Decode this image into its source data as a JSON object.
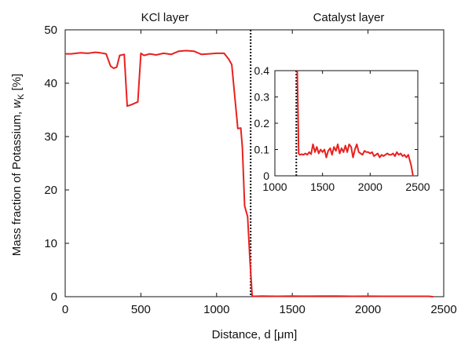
{
  "chart_data": {
    "type": "line",
    "xlabel": "Distance, d [μm]",
    "ylabel": "Mass fraction of Potassium, w_K [%]",
    "xlim": [
      0,
      2500
    ],
    "ylim": [
      0,
      50
    ],
    "xticks": [
      0,
      500,
      1000,
      1500,
      2000,
      2500
    ],
    "yticks": [
      0,
      10,
      20,
      30,
      40,
      50
    ],
    "annotations": [
      "KCl layer",
      "Catalyst layer"
    ],
    "boundary_x": 1225,
    "line_color": "#e8211f",
    "boundary_style": "dotted",
    "grid": false,
    "series": [
      {
        "x": [
          0,
          40,
          100,
          150,
          200,
          230,
          270,
          300,
          320,
          340,
          360,
          390,
          410,
          440,
          480,
          500,
          520,
          560,
          600,
          650,
          700,
          750,
          800,
          850,
          900,
          950,
          1000,
          1050,
          1080,
          1100,
          1140,
          1160,
          1170,
          1185,
          1195,
          1205,
          1220,
          1235,
          1250,
          1300,
          1400,
          1500,
          1600,
          1700,
          1800,
          1900,
          2000,
          2100,
          2200,
          2300,
          2400,
          2430
        ],
        "y": [
          45.5,
          45.5,
          45.7,
          45.6,
          45.8,
          45.7,
          45.5,
          43.2,
          42.8,
          43.0,
          45.2,
          45.4,
          35.7,
          36.0,
          36.5,
          45.6,
          45.2,
          45.5,
          45.3,
          45.6,
          45.4,
          46.0,
          46.1,
          46.0,
          45.4,
          45.5,
          45.6,
          45.6,
          44.5,
          43.5,
          31.5,
          31.6,
          28.0,
          17.0,
          16.0,
          15.0,
          7.0,
          0.1,
          0.08,
          0.1,
          0.08,
          0.1,
          0.09,
          0.1,
          0.1,
          0.08,
          0.09,
          0.07,
          0.08,
          0.08,
          0.07,
          0.0
        ]
      }
    ],
    "inset": {
      "xlim": [
        1000,
        2500
      ],
      "ylim": [
        0,
        0.4
      ],
      "xticks": [
        1000,
        1500,
        2000,
        2500
      ],
      "yticks": [
        0,
        0.1,
        0.2,
        0.3,
        0.4
      ],
      "ytick_labels": [
        "0",
        "0.1",
        "0.2",
        "0.3",
        "0.4"
      ],
      "boundary_x": 1225,
      "series": [
        {
          "x": [
            1235,
            1240,
            1245,
            1250,
            1260,
            1280,
            1300,
            1320,
            1340,
            1360,
            1380,
            1400,
            1420,
            1440,
            1460,
            1480,
            1500,
            1520,
            1540,
            1560,
            1580,
            1600,
            1620,
            1640,
            1660,
            1680,
            1700,
            1720,
            1740,
            1760,
            1780,
            1800,
            1820,
            1840,
            1860,
            1880,
            1900,
            1920,
            1940,
            1960,
            1980,
            2000,
            2020,
            2040,
            2060,
            2080,
            2100,
            2120,
            2140,
            2160,
            2180,
            2200,
            2220,
            2240,
            2260,
            2280,
            2300,
            2320,
            2340,
            2360,
            2380,
            2400,
            2415,
            2430,
            2450
          ],
          "y": [
            0.4,
            0.3,
            0.2,
            0.085,
            0.08,
            0.082,
            0.08,
            0.085,
            0.08,
            0.09,
            0.082,
            0.12,
            0.09,
            0.11,
            0.085,
            0.1,
            0.09,
            0.1,
            0.07,
            0.095,
            0.105,
            0.08,
            0.11,
            0.095,
            0.12,
            0.085,
            0.105,
            0.09,
            0.115,
            0.09,
            0.12,
            0.11,
            0.07,
            0.1,
            0.12,
            0.09,
            0.085,
            0.08,
            0.095,
            0.09,
            0.09,
            0.085,
            0.09,
            0.075,
            0.08,
            0.085,
            0.07,
            0.08,
            0.075,
            0.08,
            0.085,
            0.08,
            0.08,
            0.085,
            0.075,
            0.09,
            0.08,
            0.085,
            0.075,
            0.08,
            0.07,
            0.08,
            0.06,
            0.04,
            0.0
          ]
        }
      ]
    }
  }
}
